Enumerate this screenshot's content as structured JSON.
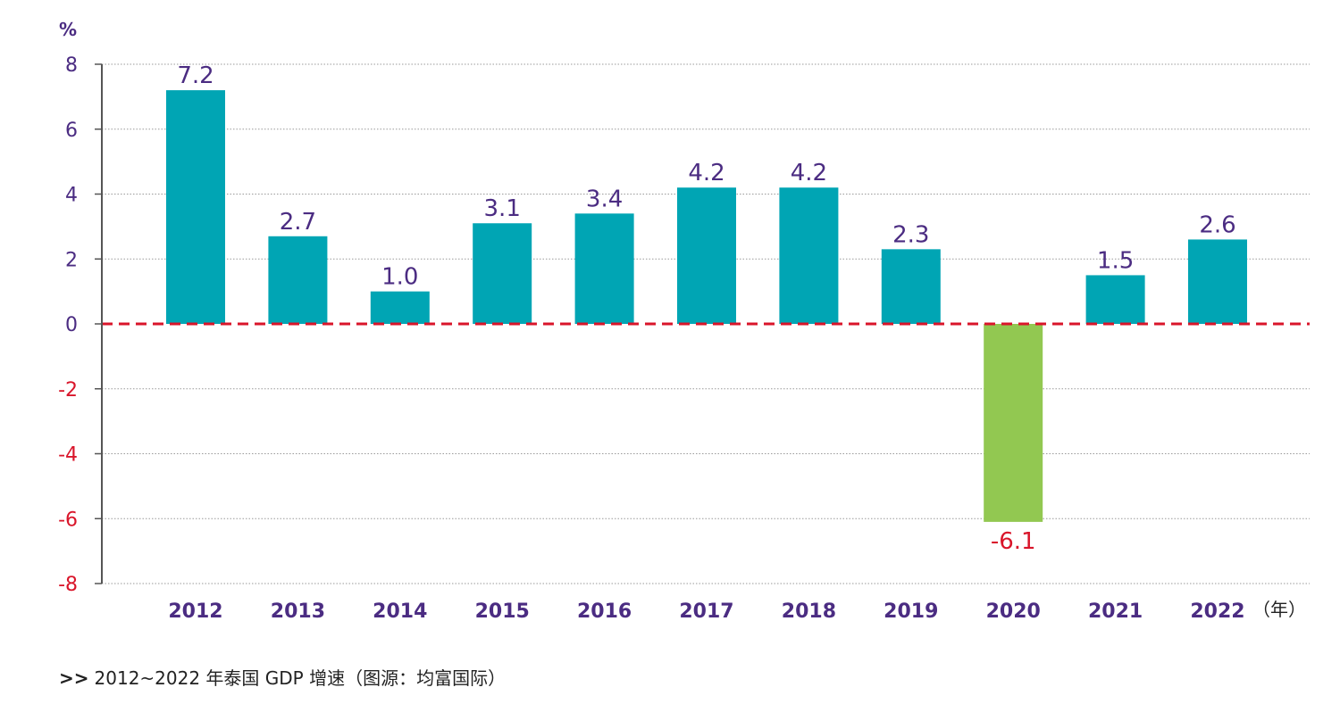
{
  "chart_data": {
    "type": "bar",
    "title": "",
    "xlabel": "（年）",
    "ylabel": "%",
    "ylim": [
      -8,
      8
    ],
    "yticks": [
      "8",
      "6",
      "4",
      "2",
      "0",
      "-2",
      "-4",
      "-6",
      "-8"
    ],
    "categories": [
      "2012",
      "2013",
      "2014",
      "2015",
      "2016",
      "2017",
      "2018",
      "2019",
      "2020",
      "2021",
      "2022"
    ],
    "values": [
      7.2,
      2.7,
      1.0,
      3.1,
      3.4,
      4.2,
      4.2,
      2.3,
      -6.1,
      1.5,
      2.6
    ],
    "value_labels": [
      "7.2",
      "2.7",
      "1.0",
      "3.1",
      "3.4",
      "4.2",
      "4.2",
      "2.3",
      "-6.1",
      "1.5",
      "2.6"
    ],
    "grid": true,
    "zero_line_style": "dashed",
    "colors": {
      "positive_bar": "#00A5B4",
      "negative_bar": "#92C851",
      "positive_text": "#4B2C82",
      "negative_text": "#D9152A",
      "zero_line": "#D9152A",
      "axis": "#555555",
      "grid": "#999999"
    }
  },
  "caption": {
    "marker": ">>",
    "text": "2012~2022 年泰国 GDP 增速（图源：均富国际）"
  }
}
